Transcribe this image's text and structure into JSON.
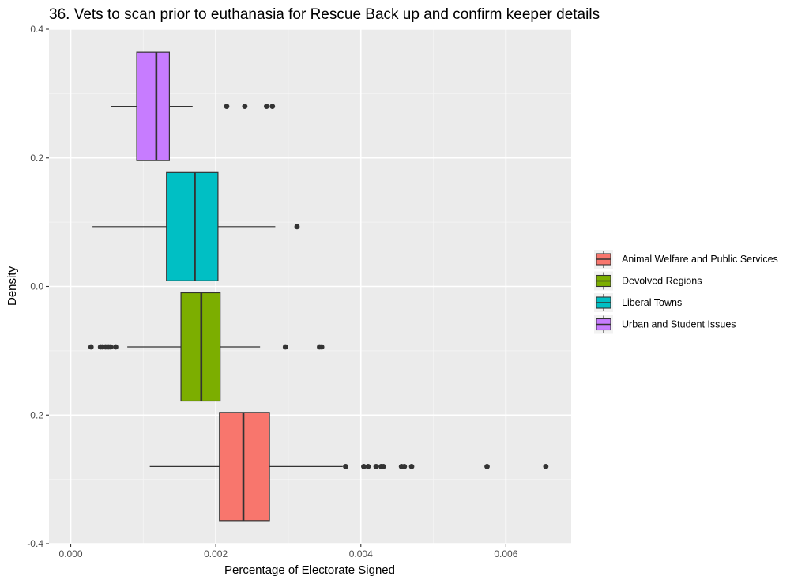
{
  "chart_data": {
    "type": "boxplot",
    "title": "36. Vets to scan prior to euthanasia for Rescue Back up and confirm keeper details",
    "xlabel": "Percentage of Electorate Signed",
    "ylabel": "Density",
    "xlim": [
      -0.0003,
      0.0069
    ],
    "ylim": [
      -0.4,
      0.4
    ],
    "x_ticks": [
      0.0,
      0.002,
      0.004,
      0.006
    ],
    "x_tick_labels": [
      "0.000",
      "0.002",
      "0.004",
      "0.006"
    ],
    "y_ticks": [
      -0.4,
      -0.2,
      0.0,
      0.2,
      0.4
    ],
    "y_tick_labels": [
      "-0.4",
      "-0.2",
      "0.0",
      "0.2",
      "0.4"
    ],
    "grid": true,
    "legend_position": "right",
    "series": [
      {
        "name": "Animal Welfare and Public Services",
        "color": "#F8766D",
        "y_center": -0.28,
        "whisker_low": 0.00109,
        "q1": 0.00205,
        "median": 0.00238,
        "q3": 0.00274,
        "whisker_high": 0.00375,
        "outliers": [
          0.00379,
          0.00404,
          0.0041,
          0.00421,
          0.00428,
          0.00431,
          0.00456,
          0.0046,
          0.0047,
          0.00574,
          0.00655
        ]
      },
      {
        "name": "Devolved Regions",
        "color": "#7CAE00",
        "y_center": -0.094,
        "whisker_low": 0.00078,
        "q1": 0.00152,
        "median": 0.0018,
        "q3": 0.00206,
        "whisker_high": 0.00261,
        "outliers": [
          0.00028,
          0.00041,
          0.00044,
          0.00048,
          0.00052,
          0.00055,
          0.00062,
          0.00296,
          0.00343,
          0.00346
        ]
      },
      {
        "name": "Liberal Towns",
        "color": "#00BFC4",
        "y_center": 0.093,
        "whisker_low": 0.0003,
        "q1": 0.00132,
        "median": 0.00171,
        "q3": 0.00203,
        "whisker_high": 0.00282,
        "outliers": [
          0.00312
        ]
      },
      {
        "name": "Urban and Student Issues",
        "color": "#C77CFF",
        "y_center": 0.28,
        "whisker_low": 0.00055,
        "q1": 0.00091,
        "median": 0.00118,
        "q3": 0.00136,
        "whisker_high": 0.00168,
        "outliers": [
          0.00215,
          0.0024,
          0.0027,
          0.00278
        ]
      }
    ]
  }
}
